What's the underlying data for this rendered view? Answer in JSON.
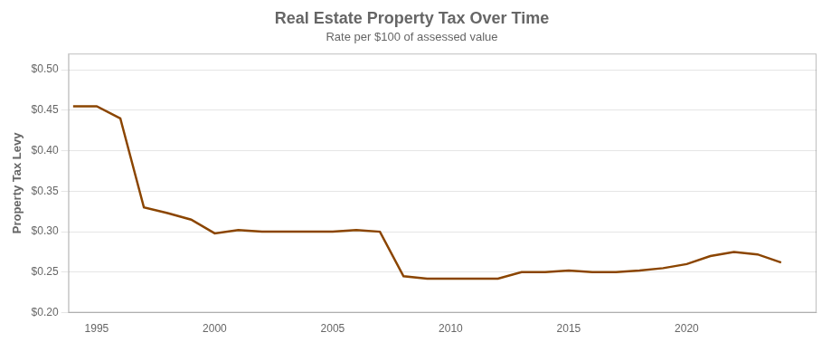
{
  "chart_data": {
    "type": "line",
    "title": "Real Estate Property Tax Over Time",
    "subtitle": "Rate per $100 of assessed value",
    "ylabel": "Property Tax Levy",
    "x": [
      1994,
      1995,
      1996,
      1997,
      1998,
      1999,
      2000,
      2001,
      2002,
      2003,
      2004,
      2005,
      2006,
      2007,
      2008,
      2009,
      2010,
      2011,
      2012,
      2013,
      2014,
      2015,
      2016,
      2017,
      2018,
      2019,
      2020,
      2021,
      2022,
      2023,
      2024
    ],
    "values": [
      0.455,
      0.455,
      0.44,
      0.33,
      0.323,
      0.315,
      0.298,
      0.302,
      0.3,
      0.3,
      0.3,
      0.3,
      0.302,
      0.3,
      0.245,
      0.242,
      0.242,
      0.242,
      0.242,
      0.25,
      0.25,
      0.252,
      0.25,
      0.25,
      0.252,
      0.255,
      0.26,
      0.27,
      0.275,
      0.272,
      0.262
    ],
    "color": "#8B4500",
    "xlim": [
      1993.8,
      2025.5
    ],
    "xticks": [
      1995,
      2000,
      2005,
      2010,
      2015,
      2020
    ],
    "ylim": [
      0.2,
      0.52
    ],
    "yticks": [
      {
        "value": 0.2,
        "label": "$0.20"
      },
      {
        "value": 0.25,
        "label": "$0.25"
      },
      {
        "value": 0.3,
        "label": "$0.30"
      },
      {
        "value": 0.35,
        "label": "$0.35"
      },
      {
        "value": 0.4,
        "label": "$0.40"
      },
      {
        "value": 0.45,
        "label": "$0.45"
      },
      {
        "value": 0.5,
        "label": "$0.50"
      }
    ],
    "grid": "y"
  }
}
